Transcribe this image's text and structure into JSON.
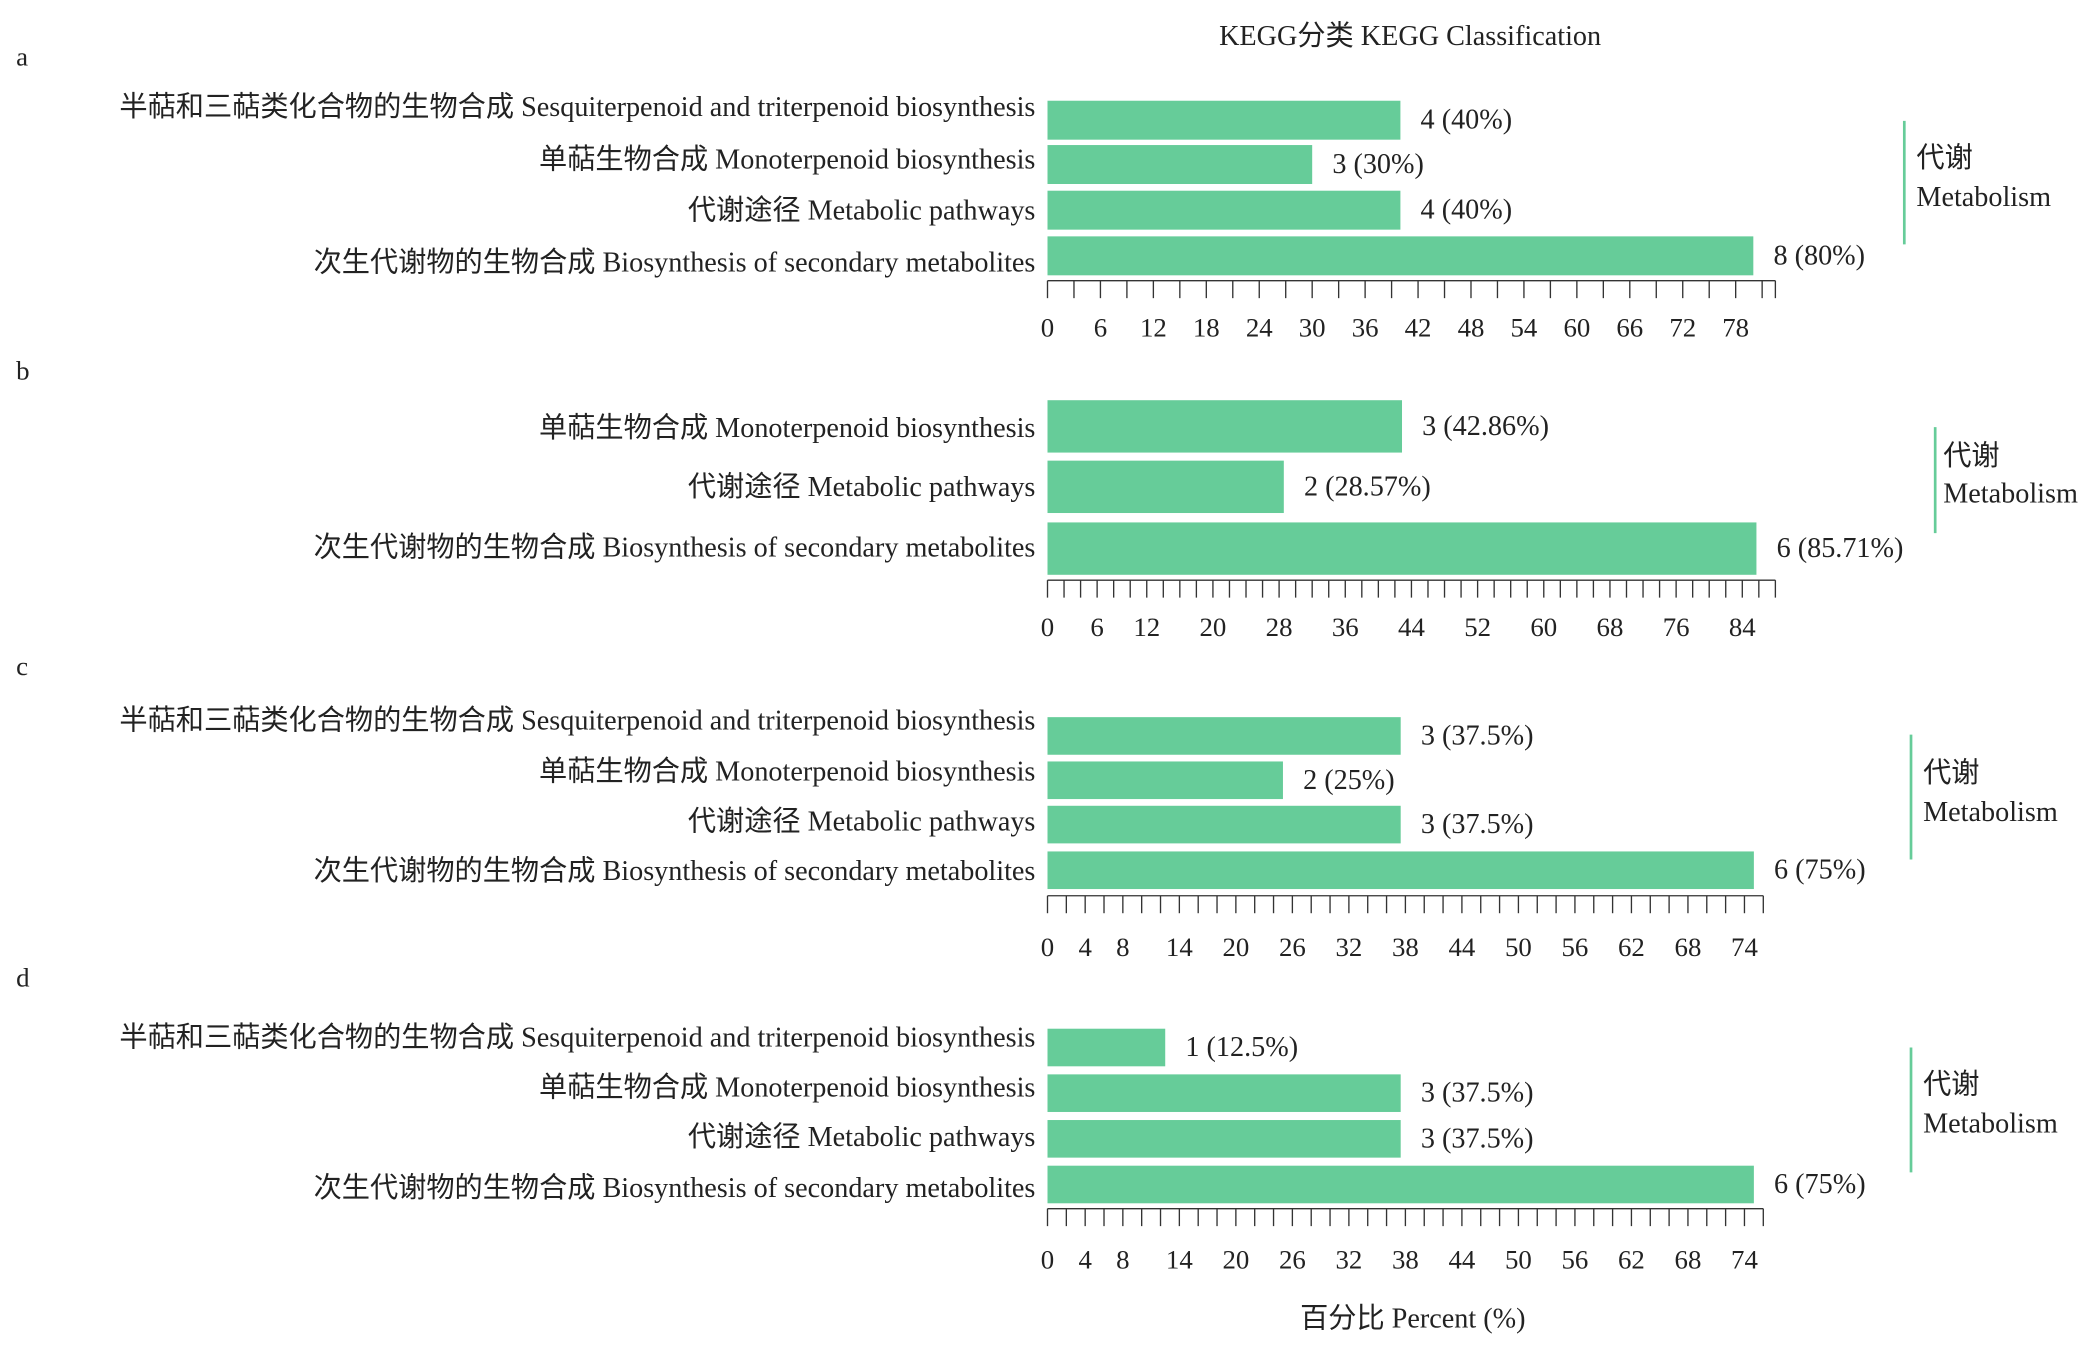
{
  "figure": {
    "title": "KEGG分类 KEGG Classification",
    "xlabel": "百分比 Percent (%)"
  },
  "colors": {
    "bar": "#66CC99",
    "bracket": "#66CC99",
    "text": "#222222",
    "axis": "#333333"
  },
  "chart_data": [
    {
      "panel": "a",
      "type": "bar",
      "orientation": "horizontal",
      "grid": false,
      "categories": [
        "半萜和三萜类化合物的生物合成 Sesquiterpenoid and triterpenoid biosynthesis",
        "单萜生物合成 Monoterpenoid biosynthesis",
        "代谢途径 Metabolic pathways",
        "次生代谢物的生物合成 Biosynthesis of secondary metabolites"
      ],
      "values": [
        40,
        30,
        40,
        80
      ],
      "data_labels": [
        "4 (40%)",
        "3 (30%)",
        "4 (40%)",
        "8 (80%)"
      ],
      "xticks": [
        0,
        6,
        12,
        18,
        24,
        30,
        36,
        42,
        48,
        54,
        60,
        66,
        72,
        78
      ],
      "minor_tick_step": 3,
      "xlim": [
        0,
        82.5
      ],
      "group": {
        "label_zh": "代谢",
        "label_en": "Metabolism"
      }
    },
    {
      "panel": "b",
      "type": "bar",
      "orientation": "horizontal",
      "grid": false,
      "categories": [
        "单萜生物合成 Monoterpenoid biosynthesis",
        "代谢途径 Metabolic pathways",
        "次生代谢物的生物合成 Biosynthesis of secondary metabolites"
      ],
      "values": [
        42.86,
        28.57,
        85.71
      ],
      "data_labels": [
        "3 (42.86%)",
        "2 (28.57%)",
        "6 (85.71%)"
      ],
      "xticks": [
        0,
        6,
        12,
        20,
        28,
        36,
        44,
        52,
        60,
        68,
        76,
        84
      ],
      "minor_tick_step": 2,
      "xlim": [
        0,
        88
      ],
      "group": {
        "label_zh": "代谢",
        "label_en": "Metabolism"
      }
    },
    {
      "panel": "c",
      "type": "bar",
      "orientation": "horizontal",
      "grid": false,
      "categories": [
        "半萜和三萜类化合物的生物合成 Sesquiterpenoid and triterpenoid biosynthesis",
        "单萜生物合成 Monoterpenoid biosynthesis",
        "代谢途径 Metabolic pathways",
        "次生代谢物的生物合成 Biosynthesis of secondary metabolites"
      ],
      "values": [
        37.5,
        25,
        37.5,
        75
      ],
      "data_labels": [
        "3 (37.5%)",
        "2 (25%)",
        "3 (37.5%)",
        "6 (75%)"
      ],
      "xticks": [
        0,
        4,
        8,
        14,
        20,
        26,
        32,
        38,
        44,
        50,
        56,
        62,
        68,
        74
      ],
      "minor_tick_step": 2,
      "xlim": [
        0,
        76
      ],
      "group": {
        "label_zh": "代谢",
        "label_en": "Metabolism"
      }
    },
    {
      "panel": "d",
      "type": "bar",
      "orientation": "horizontal",
      "grid": false,
      "categories": [
        "半萜和三萜类化合物的生物合成 Sesquiterpenoid and triterpenoid biosynthesis",
        "单萜生物合成 Monoterpenoid biosynthesis",
        "代谢途径 Metabolic pathways",
        "次生代谢物的生物合成 Biosynthesis of secondary metabolites"
      ],
      "values": [
        12.5,
        37.5,
        37.5,
        75
      ],
      "data_labels": [
        "1 (12.5%)",
        "3 (37.5%)",
        "3 (37.5%)",
        "6 (75%)"
      ],
      "xticks": [
        0,
        4,
        8,
        14,
        20,
        26,
        32,
        38,
        44,
        50,
        56,
        62,
        68,
        74
      ],
      "minor_tick_step": 2,
      "xlim": [
        0,
        76
      ],
      "group": {
        "label_zh": "代谢",
        "label_en": "Metabolism"
      }
    }
  ]
}
